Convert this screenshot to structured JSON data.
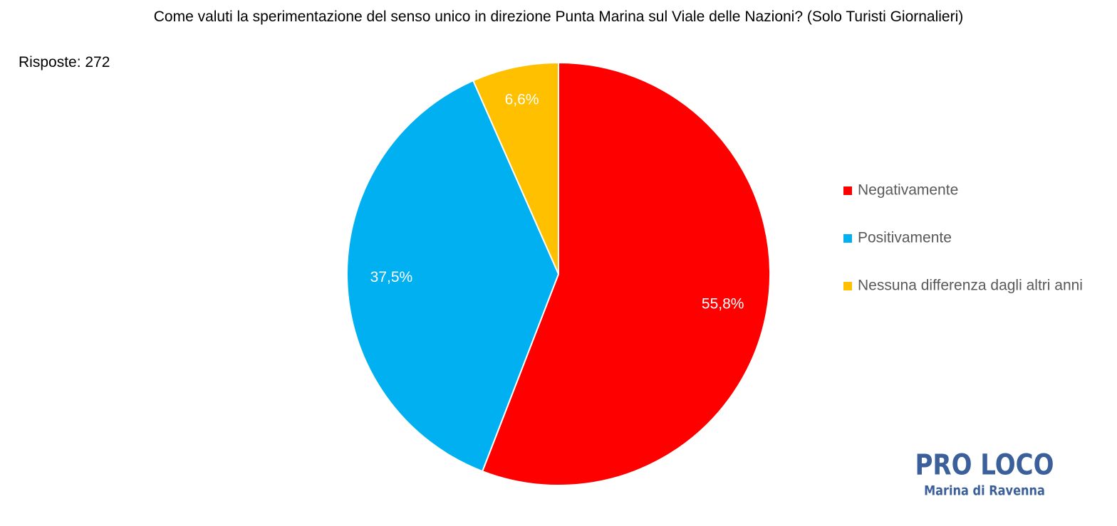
{
  "chart_data": {
    "type": "pie",
    "title": "Come valuti la sperimentazione del senso unico in direzione Punta Marina sul Viale delle Nazioni? (Solo Turisti Giornalieri)",
    "subtitle": "Risposte: 272",
    "categories": [
      "Negativamente",
      "Positivamente",
      "Nessuna differenza dagli altri anni"
    ],
    "values": [
      55.8,
      37.5,
      6.6
    ],
    "value_labels": [
      "55,8%",
      "37,5%",
      "6,6%"
    ],
    "colors": [
      "#ff0000",
      "#00b0f0",
      "#ffc000"
    ],
    "legend": "right"
  },
  "logo": {
    "title": "PRO LOCO",
    "subtitle": "Marina di Ravenna"
  }
}
